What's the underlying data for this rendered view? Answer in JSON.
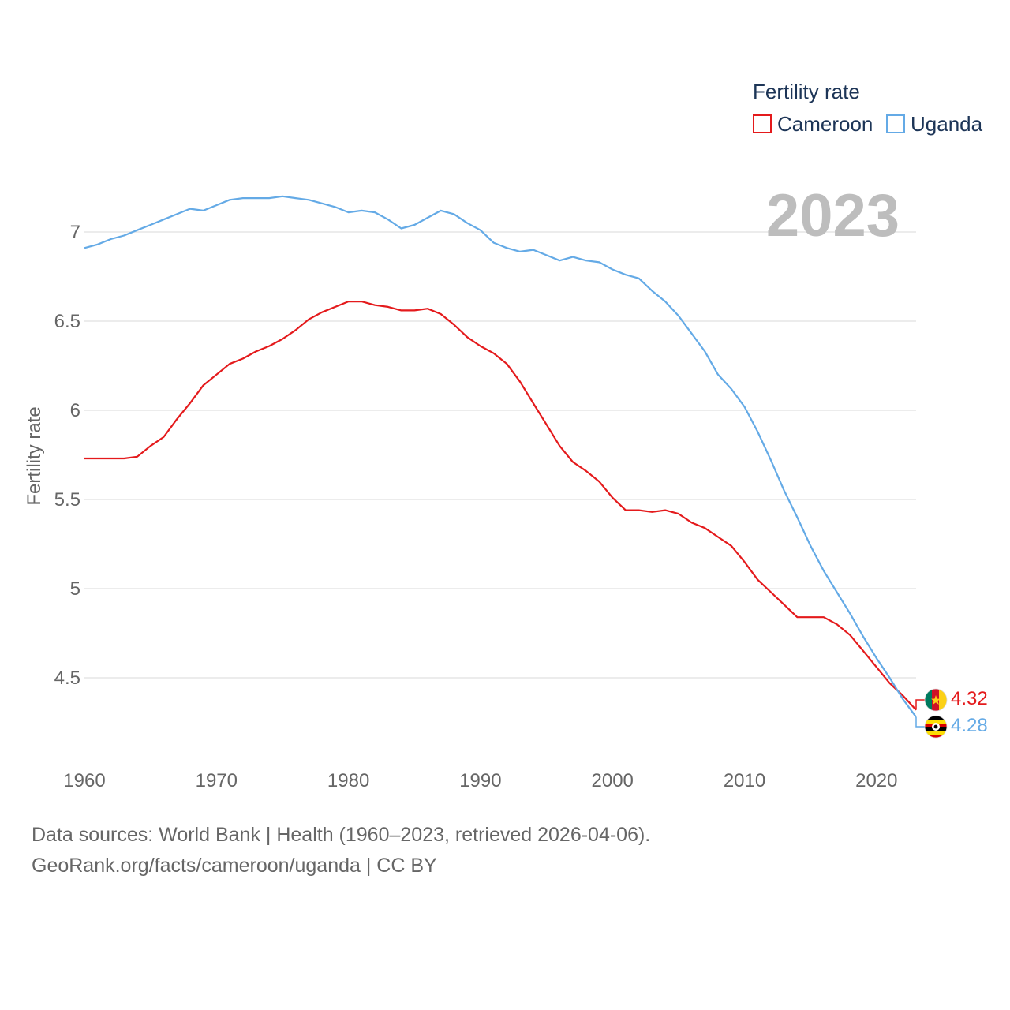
{
  "chart_data": {
    "type": "line",
    "title": "",
    "xlabel": "",
    "ylabel": "Fertility rate",
    "xlim": [
      1960,
      2023
    ],
    "ylim": [
      4.15,
      7.3
    ],
    "xticks": [
      1960,
      1970,
      1980,
      1990,
      2000,
      2010,
      2020
    ],
    "yticks": [
      4.5,
      5,
      5.5,
      6,
      6.5,
      7
    ],
    "ytick_labels": [
      "4.5",
      "5",
      "5.5",
      "6",
      "6.5",
      "7"
    ],
    "grid": true,
    "legend_title": "Fertility rate",
    "legend_position": "top-right",
    "year_label": "2023",
    "x": [
      1960,
      1961,
      1962,
      1963,
      1964,
      1965,
      1966,
      1967,
      1968,
      1969,
      1970,
      1971,
      1972,
      1973,
      1974,
      1975,
      1976,
      1977,
      1978,
      1979,
      1980,
      1981,
      1982,
      1983,
      1984,
      1985,
      1986,
      1987,
      1988,
      1989,
      1990,
      1991,
      1992,
      1993,
      1994,
      1995,
      1996,
      1997,
      1998,
      1999,
      2000,
      2001,
      2002,
      2003,
      2004,
      2005,
      2006,
      2007,
      2008,
      2009,
      2010,
      2011,
      2012,
      2013,
      2014,
      2015,
      2016,
      2017,
      2018,
      2019,
      2020,
      2021,
      2022,
      2023
    ],
    "series": [
      {
        "name": "Cameroon",
        "color": "#e41a1c",
        "end_label": "4.32",
        "flag": "cameroon-flag",
        "values": [
          5.73,
          5.73,
          5.73,
          5.73,
          5.74,
          5.8,
          5.85,
          5.95,
          6.04,
          6.14,
          6.2,
          6.26,
          6.29,
          6.33,
          6.36,
          6.4,
          6.45,
          6.51,
          6.55,
          6.58,
          6.61,
          6.61,
          6.59,
          6.58,
          6.56,
          6.56,
          6.57,
          6.54,
          6.48,
          6.41,
          6.36,
          6.32,
          6.26,
          6.16,
          6.04,
          5.92,
          5.8,
          5.71,
          5.66,
          5.6,
          5.51,
          5.44,
          5.44,
          5.43,
          5.44,
          5.42,
          5.37,
          5.34,
          5.29,
          5.24,
          5.15,
          5.05,
          4.98,
          4.91,
          4.84,
          4.84,
          4.84,
          4.8,
          4.74,
          4.65,
          4.56,
          4.47,
          4.4,
          4.32
        ]
      },
      {
        "name": "Uganda",
        "color": "#64aae6",
        "end_label": "4.28",
        "flag": "uganda-flag",
        "values": [
          6.91,
          6.93,
          6.96,
          6.98,
          7.01,
          7.04,
          7.07,
          7.1,
          7.13,
          7.12,
          7.15,
          7.18,
          7.19,
          7.19,
          7.19,
          7.2,
          7.19,
          7.18,
          7.16,
          7.14,
          7.11,
          7.12,
          7.11,
          7.07,
          7.02,
          7.04,
          7.08,
          7.12,
          7.1,
          7.05,
          7.01,
          6.94,
          6.91,
          6.89,
          6.9,
          6.87,
          6.84,
          6.86,
          6.84,
          6.83,
          6.79,
          6.76,
          6.74,
          6.67,
          6.61,
          6.53,
          6.43,
          6.33,
          6.2,
          6.12,
          6.02,
          5.88,
          5.72,
          5.55,
          5.4,
          5.24,
          5.1,
          4.98,
          4.86,
          4.73,
          4.61,
          4.5,
          4.38,
          4.28
        ]
      }
    ]
  },
  "footer": {
    "line1": "Data sources: World Bank | Health (1960–2023, retrieved 2026-04-06).",
    "line2": "GeoRank.org/facts/cameroon/uganda | CC BY"
  }
}
